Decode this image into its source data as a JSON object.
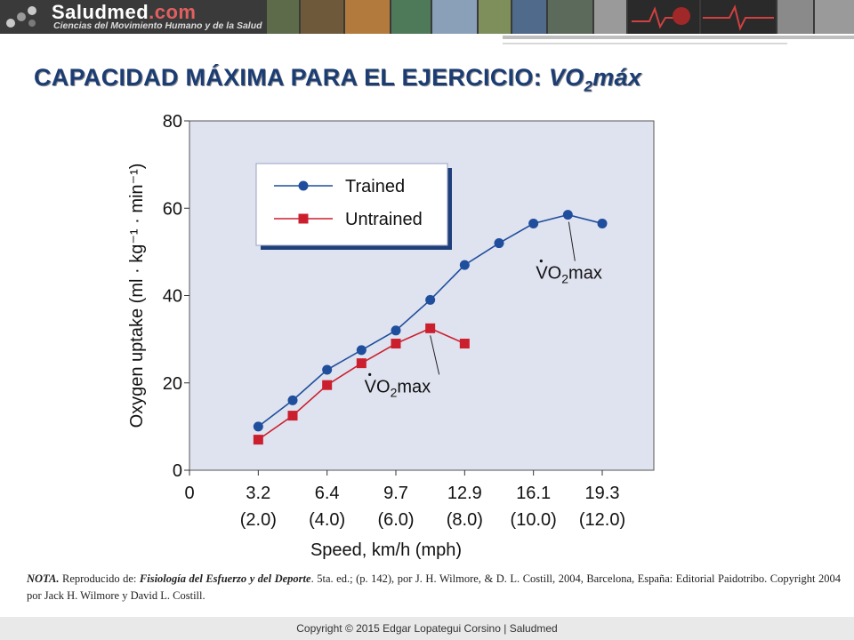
{
  "header": {
    "site_name": "Saludmed",
    "site_domain": ".com",
    "tagline": "Ciencias del Movimiento Humano y de la Salud"
  },
  "slide": {
    "title_main": "CAPACIDAD MÁXIMA PARA EL EJERCICIO: ",
    "title_vo": "VO",
    "title_sub": "2",
    "title_max": "máx"
  },
  "chart_data": {
    "type": "line",
    "ylabel": "Oxygen uptake (ml · kg⁻¹ · min⁻¹)",
    "xlabel": "Speed, km/h (mph)",
    "ylim": [
      0,
      80
    ],
    "yticks": [
      0,
      20,
      40,
      60,
      80
    ],
    "xlim": [
      0,
      13.5
    ],
    "xticks": [
      {
        "value": 0,
        "label": "0",
        "sublabel": ""
      },
      {
        "value": 2,
        "label": "3.2",
        "sublabel": "(2.0)"
      },
      {
        "value": 4,
        "label": "6.4",
        "sublabel": "(4.0)"
      },
      {
        "value": 6,
        "label": "9.7",
        "sublabel": "(6.0)"
      },
      {
        "value": 8,
        "label": "12.9",
        "sublabel": "(8.0)"
      },
      {
        "value": 10,
        "label": "16.1",
        "sublabel": "(10.0)"
      },
      {
        "value": 12,
        "label": "19.3",
        "sublabel": "(12.0)"
      }
    ],
    "grid": false,
    "legend_position": "top-left",
    "series": [
      {
        "name": "Trained",
        "color": "#1f4e9c",
        "marker": "circle",
        "x": [
          2,
          3,
          4,
          5,
          6,
          7,
          8,
          9,
          10,
          11,
          12
        ],
        "y": [
          10,
          16,
          23,
          27.5,
          32,
          39,
          47,
          52,
          56.5,
          58.5,
          56.5
        ]
      },
      {
        "name": "Untrained",
        "color": "#cc1f2e",
        "marker": "square",
        "x": [
          2,
          3,
          4,
          5,
          6,
          7,
          8
        ],
        "y": [
          7,
          12.5,
          19.5,
          24.5,
          29,
          32.5,
          29
        ]
      }
    ],
    "annotations": [
      {
        "text": "VO",
        "sub": "2",
        "suffix": "max",
        "points_to_series": "Trained"
      },
      {
        "text": "VO",
        "sub": "2",
        "suffix": "max",
        "points_to_series": "Untrained"
      }
    ]
  },
  "note": {
    "label": "NOTA.",
    "text1": " Reproducido de: ",
    "book": "Fisiología del Esfuerzo y del Deporte",
    "text2": ". 5ta. ed.; (p. 142), por J. H. Wilmore, & D. L. Costill, 2004, Barcelona, España: Editorial Paidotribo. Copyright 2004 por Jack H. Wilmore y David L. Costill."
  },
  "footer": {
    "copyright": "Copyright © 2015 Edgar Lopategui Corsino | Saludmed"
  }
}
